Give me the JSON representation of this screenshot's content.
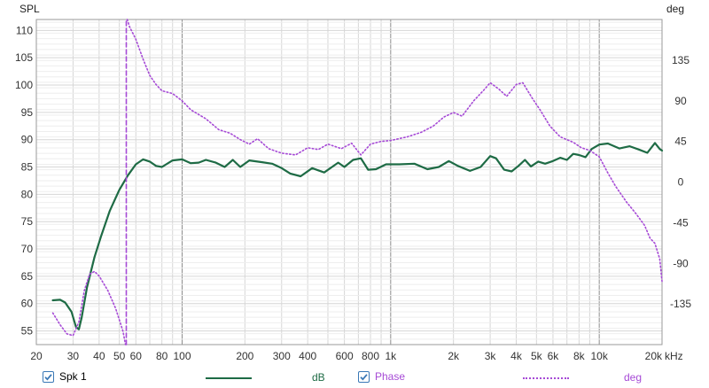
{
  "axes": {
    "left_unit": "SPL",
    "right_unit": "deg",
    "x_unit": "kHz",
    "x_ticks": [
      {
        "f": 20,
        "label": "20"
      },
      {
        "f": 30,
        "label": "30"
      },
      {
        "f": 40,
        "label": "40"
      },
      {
        "f": 50,
        "label": "50"
      },
      {
        "f": 60,
        "label": "60"
      },
      {
        "f": 80,
        "label": "80"
      },
      {
        "f": 100,
        "label": "100"
      },
      {
        "f": 200,
        "label": "200"
      },
      {
        "f": 300,
        "label": "300"
      },
      {
        "f": 400,
        "label": "400"
      },
      {
        "f": 600,
        "label": "600"
      },
      {
        "f": 800,
        "label": "800"
      },
      {
        "f": 1000,
        "label": "1k"
      },
      {
        "f": 2000,
        "label": "2k"
      },
      {
        "f": 3000,
        "label": "3k"
      },
      {
        "f": 4000,
        "label": "4k"
      },
      {
        "f": 5000,
        "label": "5k"
      },
      {
        "f": 6000,
        "label": "6k"
      },
      {
        "f": 8000,
        "label": "8k"
      },
      {
        "f": 10000,
        "label": "10k"
      },
      {
        "f": 20000,
        "label": "20k"
      }
    ],
    "left_ticks": [
      "110",
      "105",
      "100",
      "95",
      "90",
      "85",
      "80",
      "75",
      "70",
      "65",
      "60",
      "55"
    ],
    "right_ticks": [
      "135",
      "90",
      "45",
      "0",
      "-45",
      "-90",
      "-135"
    ]
  },
  "legend": {
    "spl_checked": true,
    "spl_name": "Spk 1",
    "spl_unit": "dB",
    "phase_checked": true,
    "phase_name": "Phase",
    "phase_unit": "deg"
  },
  "colors": {
    "spl": "#1e6b45",
    "phase": "#a64ad6",
    "grid_minor": "#d6d6d6",
    "grid_major": "#8c8c8c",
    "checkbox": "#3a78b6"
  },
  "chart_data": {
    "type": "line",
    "x_scale": "log",
    "xlim": [
      20,
      20000
    ],
    "ylim_left": [
      52.5,
      112
    ],
    "ylim_right": [
      -180,
      180
    ],
    "grid": true,
    "legend_position": "bottom",
    "series": [
      {
        "name": "Spk 1",
        "axis": "left",
        "unit": "dB",
        "style": "solid",
        "points": [
          [
            24,
            60.6
          ],
          [
            26,
            60.7
          ],
          [
            27.5,
            60.2
          ],
          [
            29.5,
            58.5
          ],
          [
            31,
            55.7
          ],
          [
            32,
            55.3
          ],
          [
            33,
            57.5
          ],
          [
            35,
            63
          ],
          [
            38,
            68.5
          ],
          [
            41,
            72.5
          ],
          [
            45,
            77
          ],
          [
            50,
            80.8
          ],
          [
            55,
            83.5
          ],
          [
            60,
            85.5
          ],
          [
            65,
            86.4
          ],
          [
            70,
            86
          ],
          [
            75,
            85.2
          ],
          [
            80,
            85
          ],
          [
            90,
            86.2
          ],
          [
            100,
            86.4
          ],
          [
            110,
            85.7
          ],
          [
            120,
            85.8
          ],
          [
            130,
            86.3
          ],
          [
            145,
            85.8
          ],
          [
            160,
            85
          ],
          [
            175,
            86.3
          ],
          [
            190,
            85
          ],
          [
            210,
            86.2
          ],
          [
            240,
            85.9
          ],
          [
            270,
            85.6
          ],
          [
            300,
            84.8
          ],
          [
            330,
            83.8
          ],
          [
            370,
            83.3
          ],
          [
            420,
            84.8
          ],
          [
            480,
            84
          ],
          [
            560,
            85.8
          ],
          [
            600,
            85
          ],
          [
            660,
            86.3
          ],
          [
            720,
            86.6
          ],
          [
            780,
            84.5
          ],
          [
            850,
            84.6
          ],
          [
            950,
            85.5
          ],
          [
            1100,
            85.5
          ],
          [
            1300,
            85.6
          ],
          [
            1500,
            84.6
          ],
          [
            1700,
            85
          ],
          [
            1900,
            86.1
          ],
          [
            2100,
            85.2
          ],
          [
            2400,
            84.3
          ],
          [
            2700,
            85
          ],
          [
            3000,
            87
          ],
          [
            3200,
            86.6
          ],
          [
            3500,
            84.5
          ],
          [
            3800,
            84.2
          ],
          [
            4100,
            85.2
          ],
          [
            4400,
            86.3
          ],
          [
            4700,
            85.1
          ],
          [
            5100,
            86
          ],
          [
            5500,
            85.6
          ],
          [
            6000,
            86.1
          ],
          [
            6500,
            86.7
          ],
          [
            7000,
            86.3
          ],
          [
            7500,
            87.4
          ],
          [
            8000,
            87.2
          ],
          [
            8600,
            86.8
          ],
          [
            9200,
            88.3
          ],
          [
            10000,
            89.1
          ],
          [
            11000,
            89.3
          ],
          [
            12500,
            88.4
          ],
          [
            14000,
            88.8
          ],
          [
            15500,
            88.2
          ],
          [
            17000,
            87.6
          ],
          [
            18500,
            89.4
          ],
          [
            19500,
            88.3
          ],
          [
            20000,
            88
          ]
        ]
      },
      {
        "name": "Phase",
        "axis": "right",
        "unit": "deg",
        "style": "dotted",
        "points": [
          [
            24,
            -145
          ],
          [
            26,
            -158
          ],
          [
            28,
            -168
          ],
          [
            30,
            -170
          ],
          [
            32,
            -155
          ],
          [
            34,
            -120
          ],
          [
            36,
            -102
          ],
          [
            38,
            -99
          ],
          [
            40,
            -104
          ],
          [
            44,
            -120
          ],
          [
            48,
            -140
          ],
          [
            52,
            -165
          ],
          [
            53.5,
            -180
          ]
        ]
      },
      {
        "name": "Phase",
        "axis": "right",
        "unit": "deg",
        "style": "dotted",
        "points": [
          [
            54.5,
            180
          ],
          [
            56,
            172
          ],
          [
            60,
            158
          ],
          [
            65,
            136
          ],
          [
            70,
            118
          ],
          [
            75,
            108
          ],
          [
            80,
            101
          ],
          [
            90,
            98
          ],
          [
            100,
            90
          ],
          [
            110,
            80
          ],
          [
            130,
            70
          ],
          [
            150,
            58
          ],
          [
            170,
            54
          ],
          [
            190,
            47
          ],
          [
            210,
            42
          ],
          [
            230,
            48
          ],
          [
            260,
            37
          ],
          [
            300,
            32
          ],
          [
            350,
            30
          ],
          [
            400,
            38
          ],
          [
            450,
            36
          ],
          [
            500,
            42
          ],
          [
            580,
            37
          ],
          [
            650,
            43
          ],
          [
            720,
            30
          ],
          [
            800,
            42
          ],
          [
            900,
            45
          ],
          [
            1000,
            46
          ],
          [
            1200,
            50
          ],
          [
            1400,
            55
          ],
          [
            1600,
            62
          ],
          [
            1800,
            72
          ],
          [
            2000,
            77
          ],
          [
            2200,
            73
          ],
          [
            2500,
            90
          ],
          [
            2800,
            102
          ],
          [
            3000,
            110
          ],
          [
            3300,
            103
          ],
          [
            3600,
            95
          ],
          [
            4000,
            108
          ],
          [
            4300,
            110
          ],
          [
            4800,
            92
          ],
          [
            5200,
            80
          ],
          [
            5800,
            62
          ],
          [
            6500,
            50
          ],
          [
            7500,
            44
          ],
          [
            8200,
            38
          ],
          [
            9000,
            35
          ],
          [
            10000,
            28
          ],
          [
            11000,
            10
          ],
          [
            12000,
            -5
          ],
          [
            13500,
            -22
          ],
          [
            15000,
            -35
          ],
          [
            16500,
            -48
          ],
          [
            17500,
            -62
          ],
          [
            18500,
            -68
          ],
          [
            19500,
            -85
          ],
          [
            20000,
            -110
          ]
        ]
      },
      {
        "name": "Phase",
        "axis": "right",
        "unit": "deg",
        "style": "dashed",
        "points": [
          [
            54,
            -180
          ],
          [
            54,
            180
          ]
        ]
      }
    ]
  }
}
